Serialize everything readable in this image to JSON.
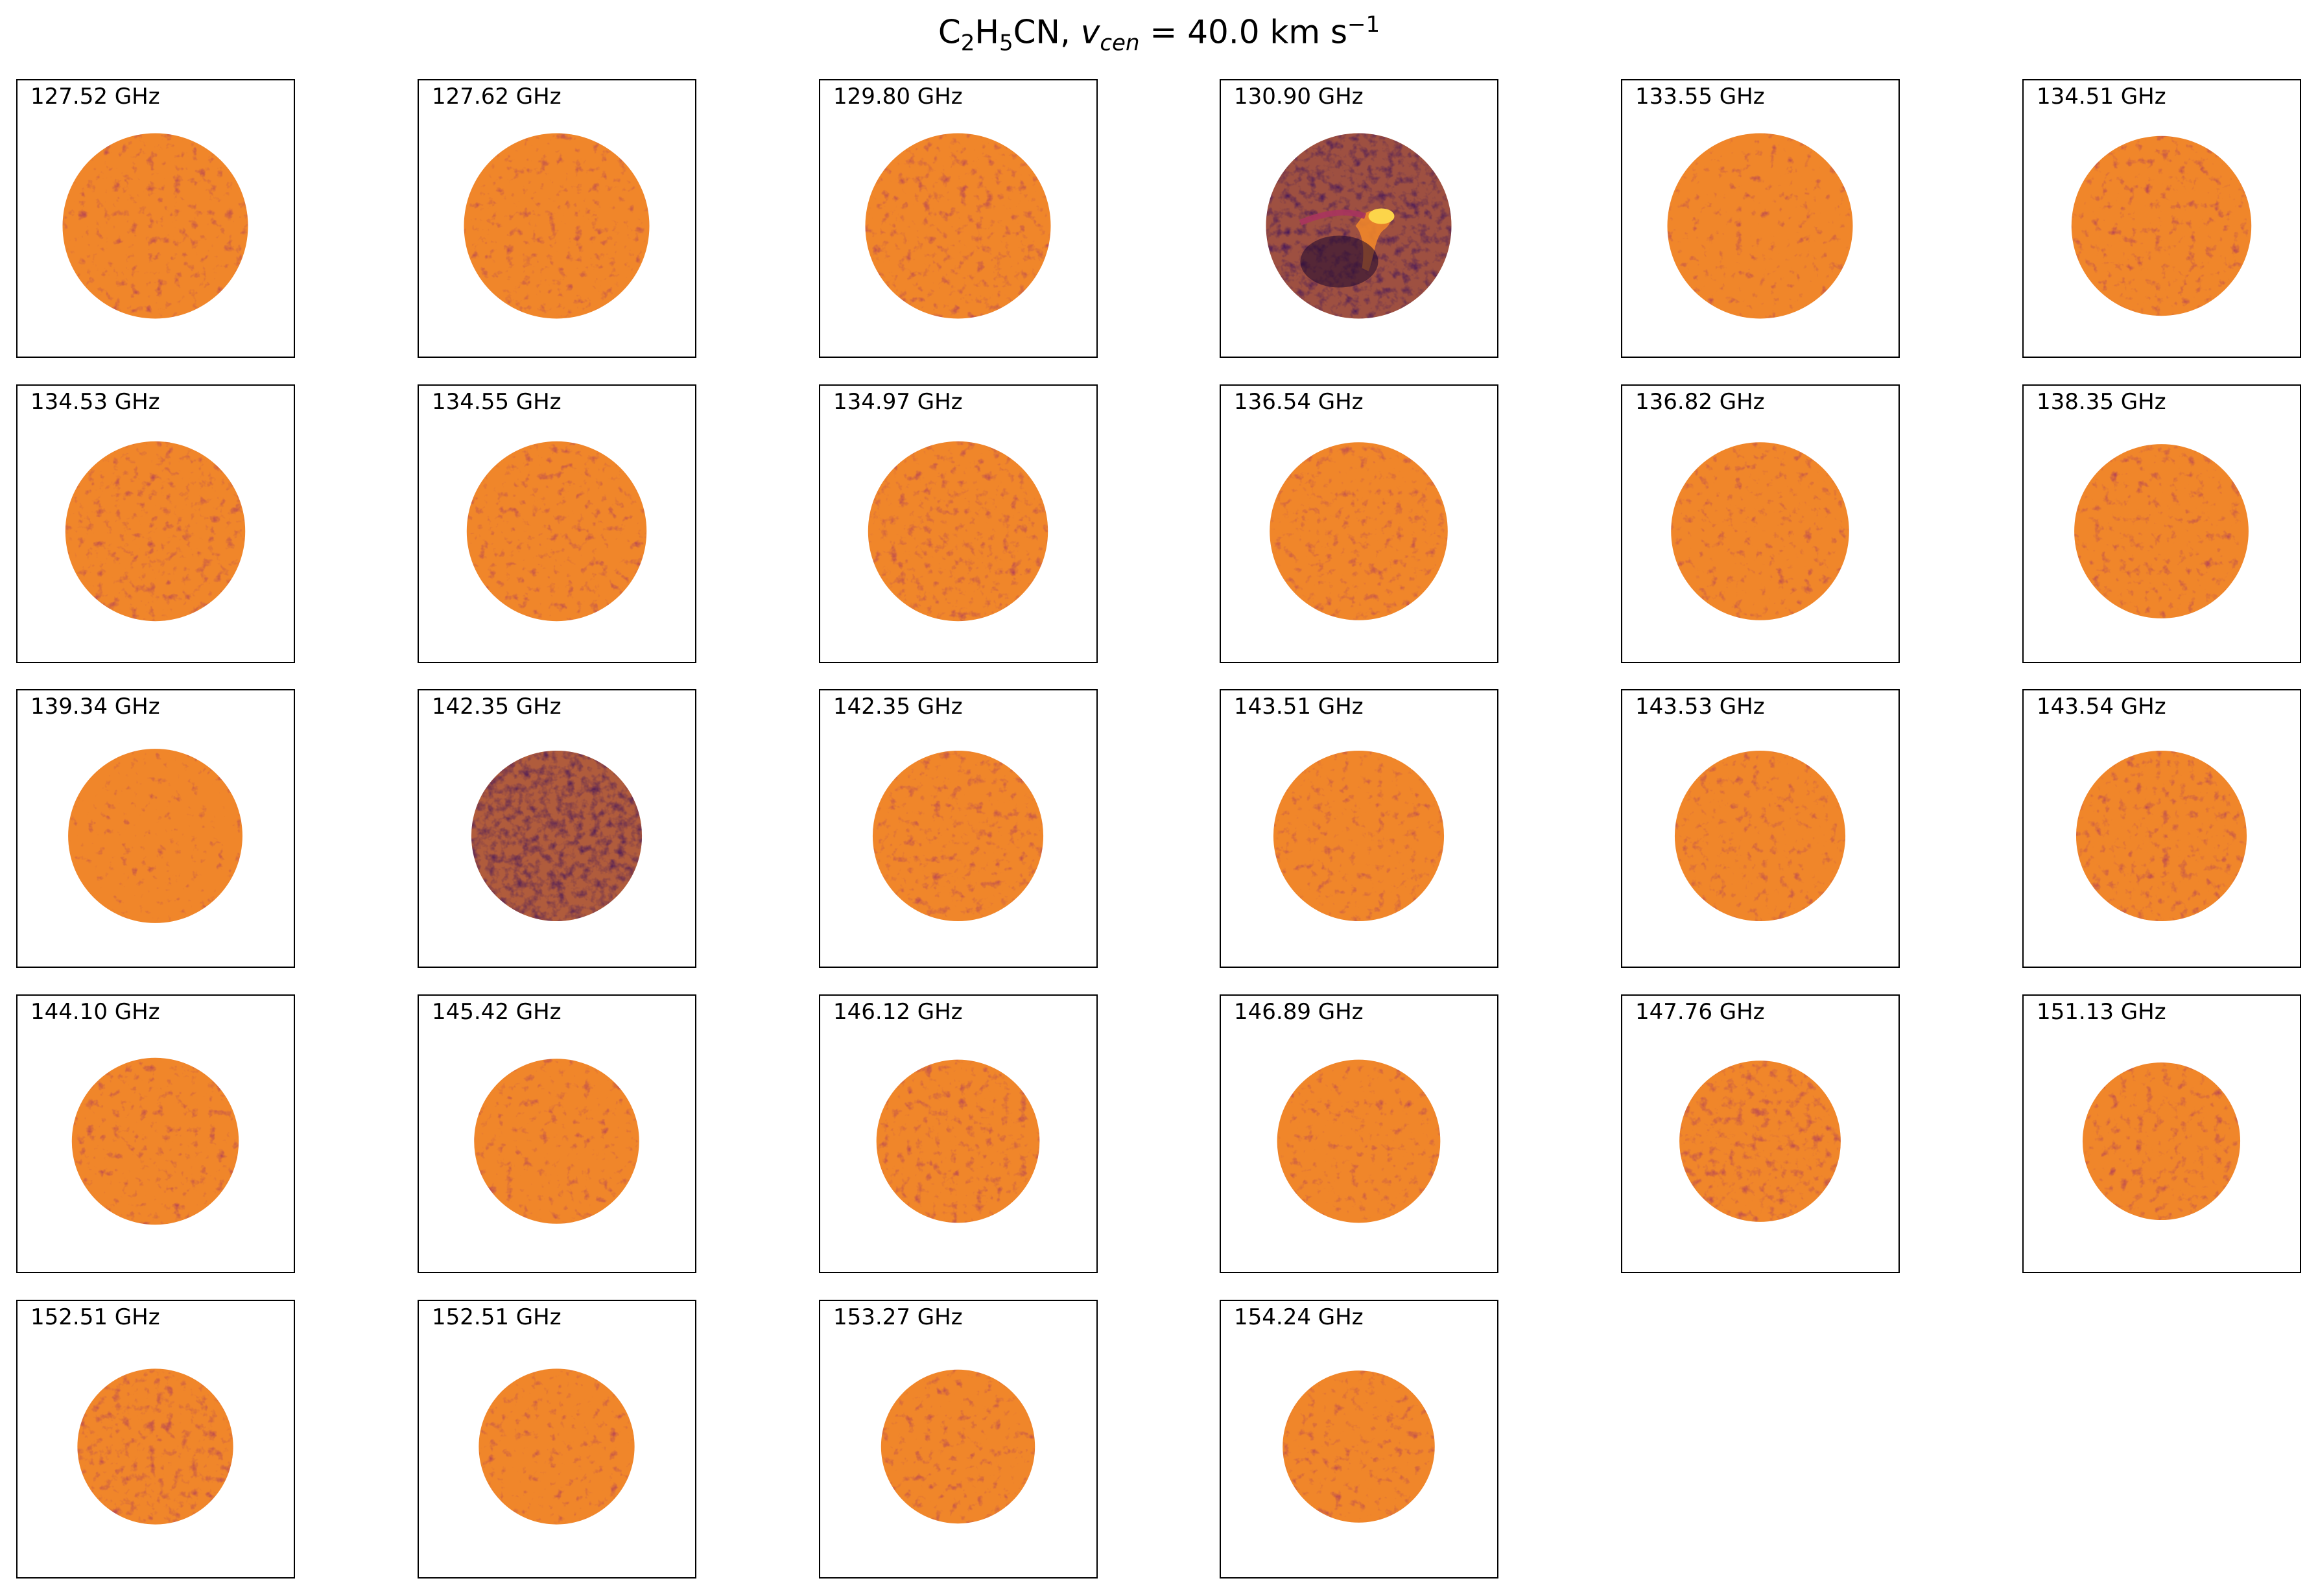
{
  "chart_data": {
    "type": "image-grid",
    "title": {
      "species_prefix": "C",
      "species_sub1": "2",
      "species_mid": "H",
      "species_sub2": "5",
      "species_suffix": "CN, ",
      "velocity_symbol": "v",
      "velocity_sub": "cen",
      "velocity_value": " =  40.0 km s",
      "velocity_sup": "−1"
    },
    "colormap": "inferno",
    "colors": {
      "dark": "#3a0f5e",
      "mid": "#a8345e",
      "bright": "#f0862a",
      "peak": "#fcd54a"
    },
    "panels": [
      {
        "label": "127.52 GHz",
        "intensity": 0.55,
        "disk_diameter": 1.0,
        "feature": false
      },
      {
        "label": "127.62 GHz",
        "intensity": 0.55,
        "disk_diameter": 1.0,
        "feature": false
      },
      {
        "label": "129.80 GHz",
        "intensity": 0.5,
        "disk_diameter": 1.0,
        "feature": false
      },
      {
        "label": "130.90 GHz",
        "intensity": 0.35,
        "disk_diameter": 1.0,
        "feature": true
      },
      {
        "label": "133.55 GHz",
        "intensity": 0.62,
        "disk_diameter": 1.0,
        "feature": false
      },
      {
        "label": "134.51 GHz",
        "intensity": 0.55,
        "disk_diameter": 0.97,
        "feature": false
      },
      {
        "label": "134.53 GHz",
        "intensity": 0.5,
        "disk_diameter": 0.97,
        "feature": false
      },
      {
        "label": "134.55 GHz",
        "intensity": 0.55,
        "disk_diameter": 0.97,
        "feature": false
      },
      {
        "label": "134.97 GHz",
        "intensity": 0.48,
        "disk_diameter": 0.97,
        "feature": false
      },
      {
        "label": "136.54 GHz",
        "intensity": 0.52,
        "disk_diameter": 0.96,
        "feature": false
      },
      {
        "label": "136.82 GHz",
        "intensity": 0.57,
        "disk_diameter": 0.96,
        "feature": false
      },
      {
        "label": "138.35 GHz",
        "intensity": 0.55,
        "disk_diameter": 0.94,
        "feature": false
      },
      {
        "label": "139.34 GHz",
        "intensity": 0.65,
        "disk_diameter": 0.94,
        "feature": false
      },
      {
        "label": "142.35 GHz",
        "intensity": 0.3,
        "disk_diameter": 0.92,
        "feature": false
      },
      {
        "label": "142.35 GHz",
        "intensity": 0.5,
        "disk_diameter": 0.92,
        "feature": false
      },
      {
        "label": "143.51 GHz",
        "intensity": 0.55,
        "disk_diameter": 0.92,
        "feature": false
      },
      {
        "label": "143.53 GHz",
        "intensity": 0.55,
        "disk_diameter": 0.92,
        "feature": false
      },
      {
        "label": "143.54 GHz",
        "intensity": 0.52,
        "disk_diameter": 0.92,
        "feature": false
      },
      {
        "label": "144.10 GHz",
        "intensity": 0.55,
        "disk_diameter": 0.9,
        "feature": false
      },
      {
        "label": "145.42 GHz",
        "intensity": 0.57,
        "disk_diameter": 0.89,
        "feature": false
      },
      {
        "label": "146.12 GHz",
        "intensity": 0.5,
        "disk_diameter": 0.88,
        "feature": false
      },
      {
        "label": "146.89 GHz",
        "intensity": 0.57,
        "disk_diameter": 0.88,
        "feature": false
      },
      {
        "label": "147.76 GHz",
        "intensity": 0.45,
        "disk_diameter": 0.87,
        "feature": false
      },
      {
        "label": "151.13 GHz",
        "intensity": 0.52,
        "disk_diameter": 0.85,
        "feature": false
      },
      {
        "label": "152.51 GHz",
        "intensity": 0.45,
        "disk_diameter": 0.84,
        "feature": false
      },
      {
        "label": "152.51 GHz",
        "intensity": 0.57,
        "disk_diameter": 0.84,
        "feature": false
      },
      {
        "label": "153.27 GHz",
        "intensity": 0.55,
        "disk_diameter": 0.83,
        "feature": false
      },
      {
        "label": "154.24 GHz",
        "intensity": 0.55,
        "disk_diameter": 0.82,
        "feature": false
      }
    ]
  }
}
